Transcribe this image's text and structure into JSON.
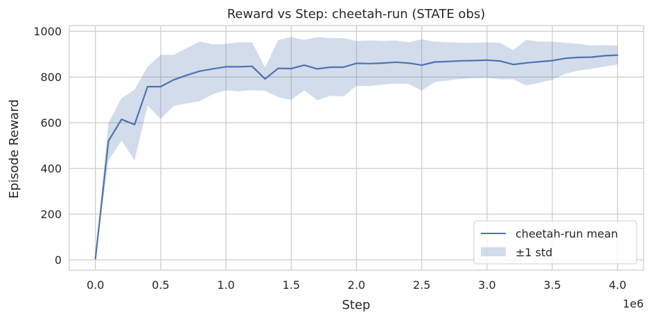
{
  "chart_data": {
    "type": "line",
    "title": "Reward vs Step: cheetah-run (STATE obs)",
    "xlabel": "Step",
    "ylabel": "Episode Reward",
    "x_offset_label": "1e6",
    "xlim": [
      -0.2,
      4.2
    ],
    "ylim": [
      -45,
      1025
    ],
    "xticks": [
      0.0,
      0.5,
      1.0,
      1.5,
      2.0,
      2.5,
      3.0,
      3.5,
      4.0
    ],
    "xtick_labels": [
      "0.0",
      "0.5",
      "1.0",
      "1.5",
      "2.0",
      "2.5",
      "3.0",
      "3.5",
      "4.0"
    ],
    "yticks": [
      0,
      200,
      400,
      600,
      800,
      1000
    ],
    "ytick_labels": [
      "0",
      "200",
      "400",
      "600",
      "800",
      "1000"
    ],
    "grid": true,
    "legend_position": "lower-right",
    "x": [
      0.0,
      0.1,
      0.2,
      0.3,
      0.4,
      0.5,
      0.6,
      0.7,
      0.8,
      0.9,
      1.0,
      1.1,
      1.2,
      1.3,
      1.4,
      1.5,
      1.6,
      1.7,
      1.8,
      1.9,
      2.0,
      2.1,
      2.2,
      2.3,
      2.4,
      2.5,
      2.6,
      2.7,
      2.8,
      2.9,
      3.0,
      3.1,
      3.2,
      3.3,
      3.4,
      3.5,
      3.6,
      3.7,
      3.8,
      3.9,
      4.0
    ],
    "series": [
      {
        "name": "cheetah-run mean",
        "type": "line",
        "color": "#4c72b0",
        "values": [
          5,
          520,
          615,
          592,
          758,
          758,
          788,
          808,
          826,
          836,
          845,
          845,
          847,
          792,
          838,
          837,
          852,
          836,
          843,
          843,
          860,
          859,
          861,
          865,
          861,
          852,
          866,
          868,
          871,
          872,
          874,
          870,
          855,
          862,
          867,
          872,
          882,
          886,
          887,
          893,
          896
        ]
      },
      {
        "name": "±1 std",
        "type": "band",
        "color": "#4c72b0",
        "opacity": 0.25,
        "lower": [
          5,
          435,
          522,
          435,
          675,
          617,
          673,
          685,
          695,
          725,
          742,
          738,
          742,
          740,
          712,
          700,
          742,
          698,
          718,
          715,
          762,
          760,
          767,
          772,
          770,
          740,
          778,
          785,
          792,
          795,
          796,
          790,
          790,
          763,
          775,
          788,
          815,
          828,
          836,
          846,
          855
        ],
        "upper": [
          5,
          600,
          707,
          745,
          845,
          897,
          897,
          927,
          955,
          943,
          945,
          952,
          952,
          842,
          962,
          975,
          962,
          975,
          970,
          970,
          958,
          960,
          958,
          960,
          952,
          965,
          955,
          952,
          950,
          950,
          952,
          950,
          918,
          962,
          955,
          955,
          950,
          945,
          938,
          940,
          937
        ]
      }
    ]
  }
}
